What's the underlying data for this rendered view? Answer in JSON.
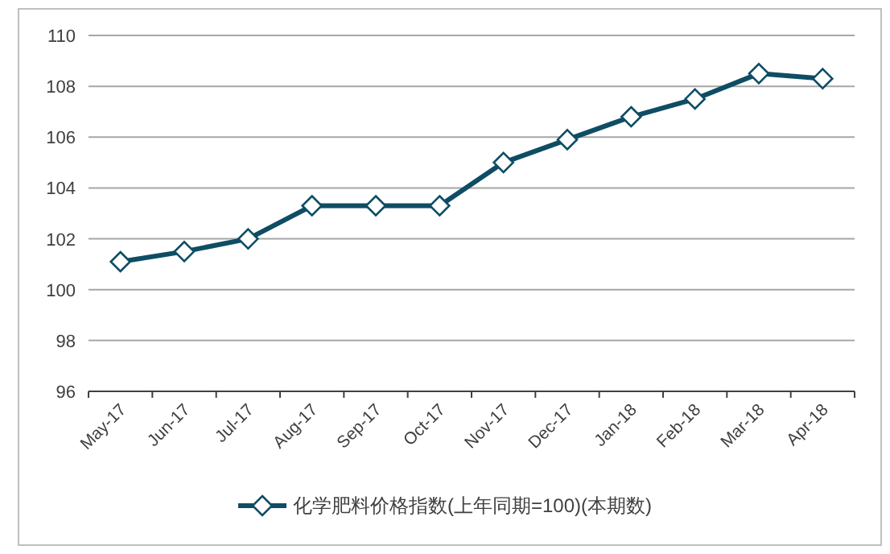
{
  "chart_data": {
    "type": "line",
    "categories": [
      "May-17",
      "Jun-17",
      "Jul-17",
      "Aug-17",
      "Sep-17",
      "Oct-17",
      "Nov-17",
      "Dec-17",
      "Jan-18",
      "Feb-18",
      "Mar-18",
      "Apr-18"
    ],
    "series": [
      {
        "name": "化学肥料价格指数(上年同期=100)(本期数)",
        "color": "#0e4d64",
        "values": [
          101.1,
          101.5,
          102.0,
          103.3,
          103.3,
          103.3,
          105.0,
          105.9,
          106.8,
          107.5,
          108.5,
          108.3
        ]
      }
    ],
    "ylim": [
      96,
      110
    ],
    "yticks": [
      96,
      98,
      100,
      102,
      104,
      106,
      108,
      110
    ],
    "grid": "y",
    "legend": "bottom",
    "marker": "diamond"
  }
}
